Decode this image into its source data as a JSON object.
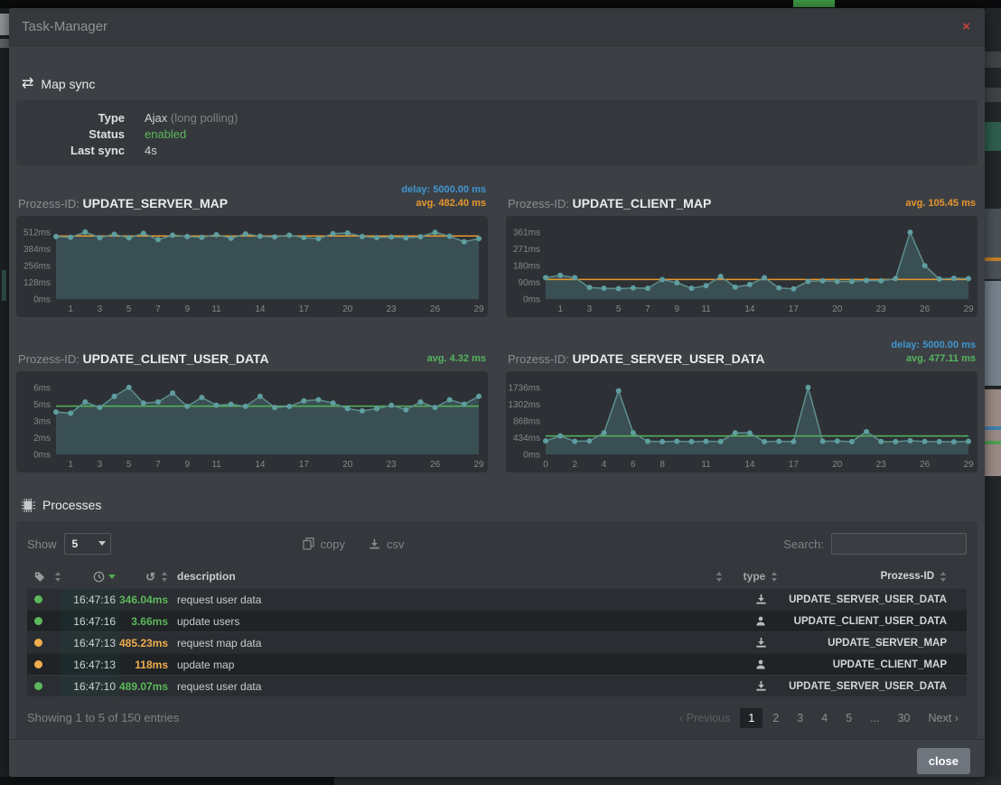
{
  "window": {
    "title": "Task-Manager",
    "close": "×"
  },
  "colors": {
    "accent_blue": "#4095d0",
    "accent_orange": "#e8962e",
    "accent_green": "#5cb85c",
    "dot_green": "#5cb85c",
    "dot_orange": "#f0ad4e",
    "chart_line": "#5d8f8c",
    "chart_dot": "#5f9ea0",
    "chart_fill": "rgba(95,158,160,0.28)",
    "close_red": "#c14438"
  },
  "map_sync": {
    "heading": "Map sync",
    "type_label": "Type",
    "type_value": "Ajax",
    "type_note": "(long polling)",
    "status_label": "Status",
    "status_value": "enabled",
    "last_sync_label": "Last sync",
    "last_sync_value": "4s"
  },
  "charts": {
    "prefix": "Prozess-ID:"
  },
  "chart_data": [
    {
      "type": "area",
      "name": "UPDATE_SERVER_MAP",
      "delay": "delay: 5000.00 ms",
      "avg": "avg. 482.40 ms",
      "avg_value": 482.4,
      "avg_color": "#e8962e",
      "ylabel": "ms",
      "legend_position": "none",
      "grid": false,
      "y_ticks": {
        "values": [
          0,
          128,
          256,
          384,
          512
        ],
        "labels": [
          "0ms",
          "128ms",
          "256ms",
          "384ms",
          "512ms"
        ]
      },
      "x_ticks": [
        1,
        3,
        5,
        7,
        9,
        11,
        14,
        17,
        20,
        23,
        26,
        29
      ],
      "values": [
        478,
        472,
        512,
        470,
        495,
        468,
        502,
        455,
        488,
        478,
        472,
        492,
        465,
        498,
        480,
        475,
        488,
        470,
        462,
        500,
        505,
        478,
        470,
        474,
        468,
        476,
        510,
        480,
        438,
        462
      ]
    },
    {
      "type": "area",
      "name": "UPDATE_CLIENT_MAP",
      "avg": "avg. 105.45 ms",
      "avg_value": 105.45,
      "avg_color": "#e8962e",
      "ylabel": "ms",
      "legend_position": "none",
      "grid": false,
      "y_ticks": {
        "values": [
          0,
          90.25,
          180.5,
          270.75,
          361
        ],
        "labels": [
          "0ms",
          "90ms",
          "180ms",
          "271ms",
          "361ms"
        ]
      },
      "x_ticks": [
        1,
        3,
        5,
        7,
        9,
        11,
        14,
        17,
        20,
        23,
        26,
        29
      ],
      "values": [
        115,
        128,
        115,
        62,
        58,
        56,
        60,
        58,
        105,
        88,
        58,
        72,
        122,
        64,
        78,
        115,
        60,
        55,
        95,
        98,
        95,
        95,
        100,
        98,
        110,
        360,
        180,
        108,
        112,
        110
      ]
    },
    {
      "type": "area",
      "name": "UPDATE_CLIENT_USER_DATA",
      "avg": "avg. 4.32 ms",
      "avg_value": 4.32,
      "avg_color": "#56b45c",
      "ylabel": "ms",
      "legend_position": "none",
      "grid": false,
      "y_ticks": {
        "values": [
          0,
          1.5,
          3,
          4.5,
          6
        ],
        "labels": [
          "0ms",
          "2ms",
          "3ms",
          "5ms",
          "6ms"
        ]
      },
      "x_ticks": [
        1,
        3,
        5,
        7,
        9,
        11,
        14,
        17,
        20,
        23,
        26,
        29
      ],
      "values": [
        3.8,
        3.7,
        4.7,
        4.2,
        5.2,
        6.0,
        4.6,
        4.7,
        5.5,
        4.3,
        5.1,
        4.4,
        4.5,
        4.3,
        5.2,
        4.2,
        4.3,
        4.8,
        4.9,
        4.6,
        4.1,
        3.9,
        4.1,
        4.4,
        4.0,
        4.7,
        4.2,
        4.9,
        4.5,
        5.2
      ]
    },
    {
      "type": "area",
      "name": "UPDATE_SERVER_USER_DATA",
      "delay": "delay: 5000.00 ms",
      "avg": "avg. 477.11 ms",
      "avg_value": 477.11,
      "avg_color": "#56b45c",
      "ylabel": "ms",
      "legend_position": "none",
      "grid": false,
      "y_ticks": {
        "values": [
          0,
          434,
          868,
          1302,
          1736
        ],
        "labels": [
          "0ms",
          "434ms",
          "868ms",
          "1302ms",
          "1736ms"
        ]
      },
      "x_ticks": [
        0,
        2,
        4,
        6,
        8,
        11,
        14,
        17,
        20,
        23,
        26,
        29
      ],
      "values": [
        350,
        480,
        340,
        350,
        560,
        1650,
        560,
        340,
        330,
        340,
        330,
        340,
        335,
        560,
        555,
        330,
        340,
        330,
        1736,
        340,
        345,
        330,
        590,
        335,
        330,
        355,
        335,
        330,
        325,
        340
      ]
    }
  ],
  "processes": {
    "heading": "Processes",
    "show_label": "Show",
    "show_value": "5",
    "copy_label": "copy",
    "csv_label": "csv",
    "search_label": "Search:",
    "search_value": "",
    "columns": {
      "description": "description",
      "type": "type",
      "prozess_id": "Prozess-ID"
    },
    "rows": [
      {
        "status": "green",
        "time": "16:47:16",
        "duration": "346.04ms",
        "duration_color": "green",
        "description": "request user data",
        "type": "server",
        "prozess_id": "UPDATE_SERVER_USER_DATA"
      },
      {
        "status": "green",
        "time": "16:47:16",
        "duration": "3.66ms",
        "duration_color": "green",
        "description": "update users",
        "type": "client",
        "prozess_id": "UPDATE_CLIENT_USER_DATA"
      },
      {
        "status": "orange",
        "time": "16:47:13",
        "duration": "485.23ms",
        "duration_color": "orange",
        "description": "request map data",
        "type": "server",
        "prozess_id": "UPDATE_SERVER_MAP"
      },
      {
        "status": "orange",
        "time": "16:47:13",
        "duration": "118ms",
        "duration_color": "orange",
        "description": "update map",
        "type": "client",
        "prozess_id": "UPDATE_CLIENT_MAP"
      },
      {
        "status": "green",
        "time": "16:47:10",
        "duration": "489.07ms",
        "duration_color": "green",
        "description": "request user data",
        "type": "server",
        "prozess_id": "UPDATE_SERVER_USER_DATA"
      }
    ],
    "summary": "Showing 1 to 5 of 150 entries",
    "pagination": {
      "previous": "Previous",
      "pages": [
        "1",
        "2",
        "3",
        "4",
        "5",
        "...",
        "30"
      ],
      "active_page": "1",
      "next": "Next"
    }
  },
  "footer": {
    "close_label": "close"
  }
}
